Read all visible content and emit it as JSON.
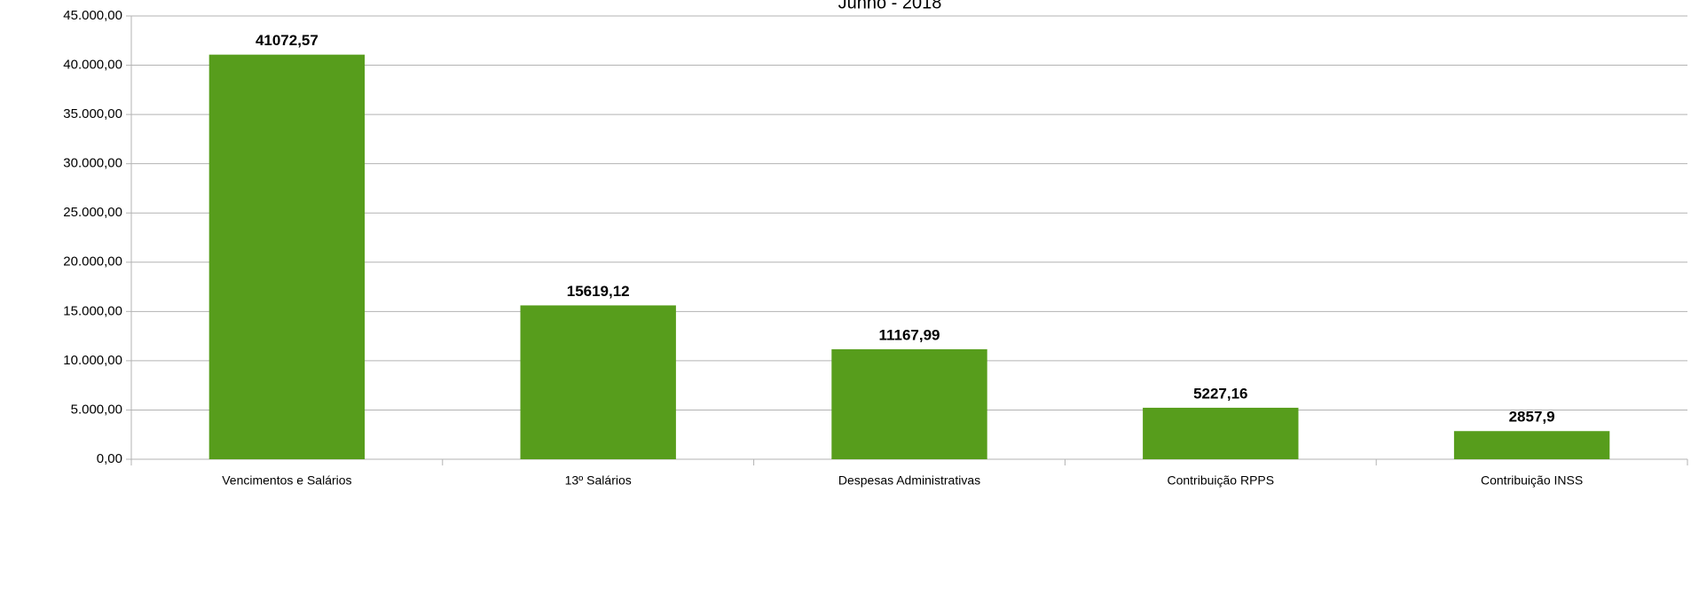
{
  "chart_data": {
    "type": "bar",
    "title": "Junho - 2018",
    "categories": [
      "Vencimentos e Salários",
      "13º Salários",
      "Despesas Administrativas",
      "Contribuição RPPS",
      "Contribuição INSS"
    ],
    "values": [
      41072.57,
      15619.12,
      11167.99,
      5227.16,
      2857.9
    ],
    "value_labels": [
      "41072,57",
      "15619,12",
      "11167,99",
      "5227,16",
      "2857,9"
    ],
    "color": "#579d1c",
    "ylim": [
      0,
      45000
    ],
    "yticks": [
      {
        "value": 0,
        "label": "0,00"
      },
      {
        "value": 5000,
        "label": "5.000,00"
      },
      {
        "value": 10000,
        "label": "10.000,00"
      },
      {
        "value": 15000,
        "label": "15.000,00"
      },
      {
        "value": 20000,
        "label": "20.000,00"
      },
      {
        "value": 25000,
        "label": "25.000,00"
      },
      {
        "value": 30000,
        "label": "30.000,00"
      },
      {
        "value": 35000,
        "label": "35.000,00"
      },
      {
        "value": 40000,
        "label": "40.000,00"
      },
      {
        "value": 45000,
        "label": "45.000,00"
      }
    ],
    "grid": true
  }
}
